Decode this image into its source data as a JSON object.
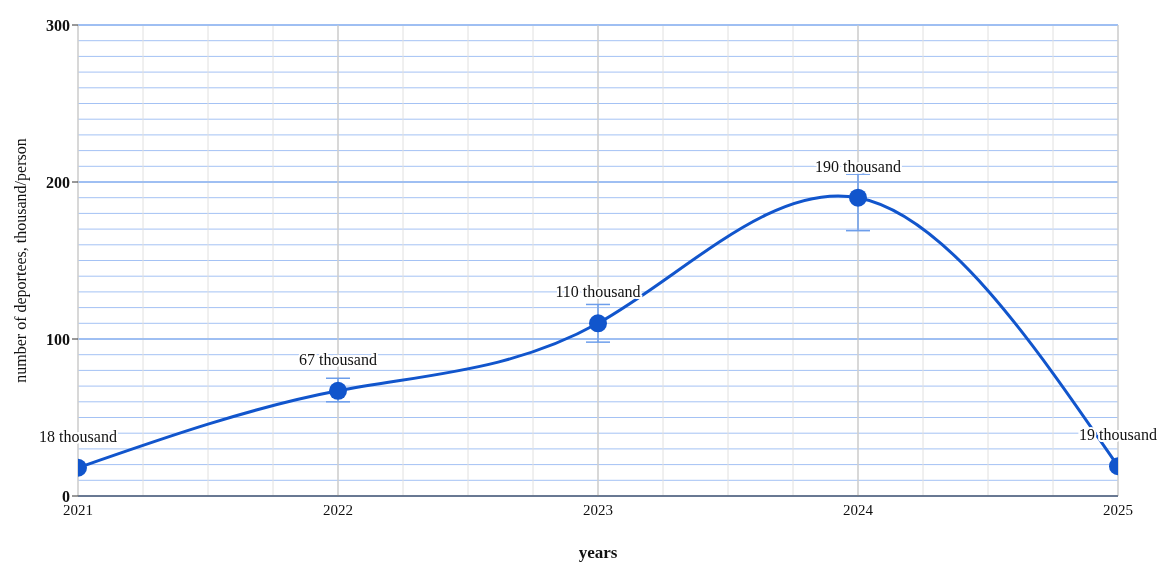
{
  "chart_data": {
    "type": "line",
    "xlabel": "years",
    "ylabel": "number of deportees, thousand/person",
    "x": [
      2021,
      2022,
      2023,
      2024,
      2025
    ],
    "series": [
      {
        "color": "#1155cc",
        "values": [
          18,
          67,
          110,
          190,
          19
        ],
        "errors": [
          null,
          [
            60,
            75
          ],
          [
            98,
            122
          ],
          [
            169,
            205
          ],
          null
        ],
        "value_labels": [
          "18 thousand",
          "67 thousand",
          "110 thousand",
          "190 thousand",
          "19 thousand"
        ]
      }
    ],
    "xlim": [
      2021,
      2025
    ],
    "xticks": [
      2021,
      2022,
      2023,
      2024,
      2025
    ],
    "ylim": [
      0,
      300
    ],
    "yticks": [
      0,
      100,
      200,
      300
    ],
    "grid": true,
    "marker": "circle",
    "line_style": "solid",
    "legend": false
  }
}
